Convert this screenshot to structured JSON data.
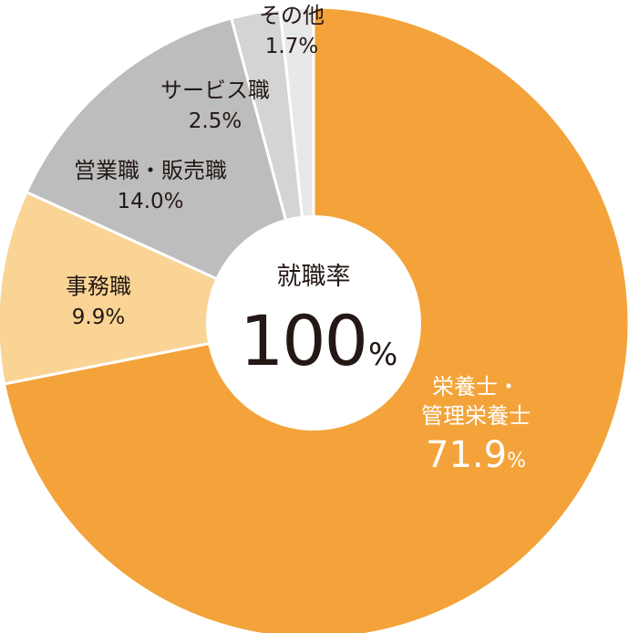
{
  "chart_data": {
    "type": "pie",
    "center_label": "就職率",
    "center_value": "100",
    "center_unit": "%",
    "slices": [
      {
        "label_lines": [
          "栄養士・",
          "管理栄養士"
        ],
        "value": 71.9,
        "value_text": "71.9",
        "unit_text": "%",
        "color": "#F3A33A",
        "text_color": "#ffffff"
      },
      {
        "label_lines": [
          "事務職"
        ],
        "value": 9.9,
        "value_text": "9.9%",
        "unit_text": "",
        "color": "#F9D495",
        "text_color": "#231815"
      },
      {
        "label_lines": [
          "営業職・販売職"
        ],
        "value": 14.0,
        "value_text": "14.0%",
        "unit_text": "",
        "color": "#BDBDBD",
        "text_color": "#231815"
      },
      {
        "label_lines": [
          "サービス職"
        ],
        "value": 2.5,
        "value_text": "2.5%",
        "unit_text": "",
        "color": "#D4D4D4",
        "text_color": "#231815"
      },
      {
        "label_lines": [
          "その他"
        ],
        "value": 1.7,
        "value_text": "1.7%",
        "unit_text": "",
        "color": "#E8E8E8",
        "text_color": "#231815"
      }
    ]
  }
}
